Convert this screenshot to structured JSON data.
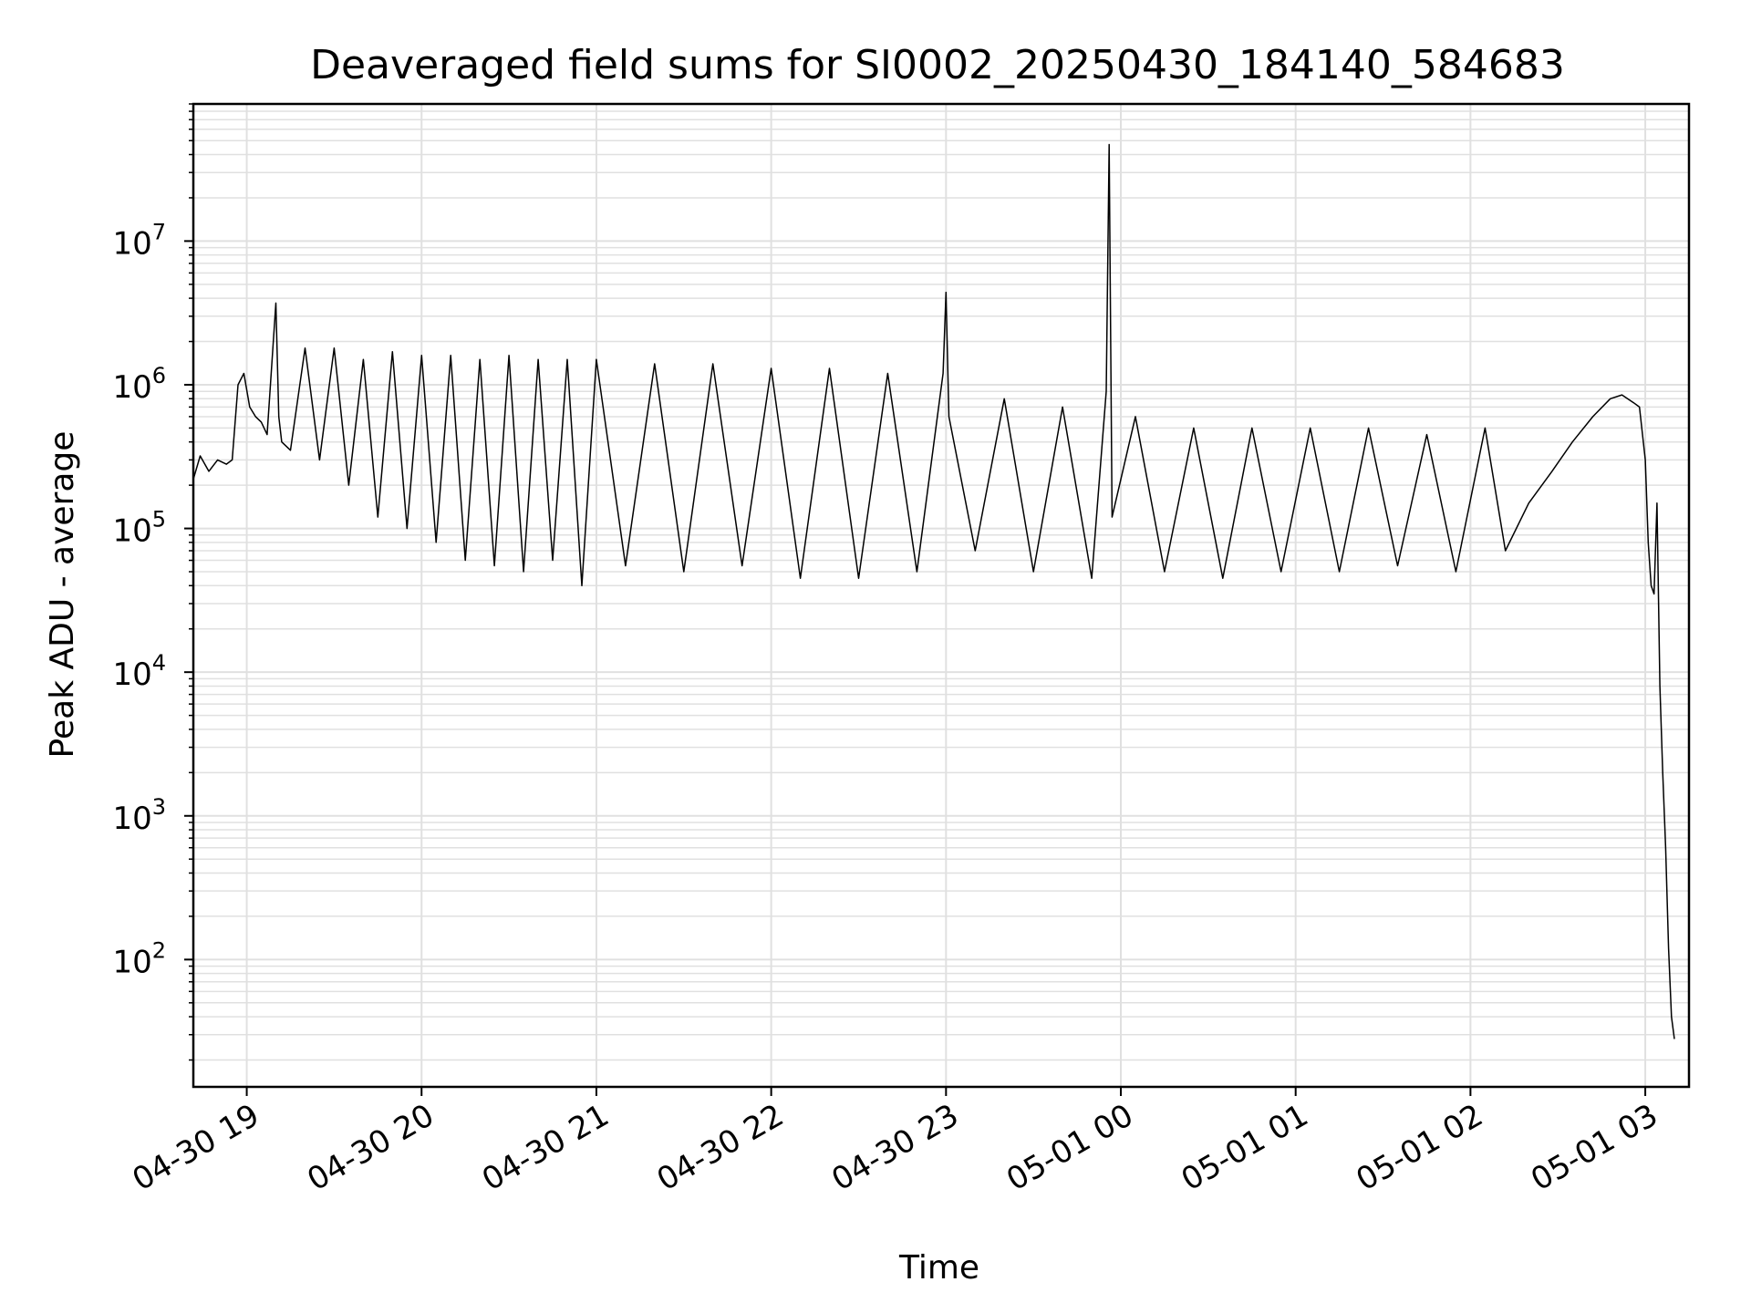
{
  "chart_data": {
    "type": "line",
    "title": "Deaveraged field sums for SI0002_20250430_184140_584683",
    "xlabel": "Time",
    "ylabel": "Peak ADU - average",
    "y_scale": "log",
    "ylim": [
      13,
      90000000
    ],
    "xlim": [
      "2025-04-30 18:41:40",
      "2025-05-01 03:15:00"
    ],
    "grid": true,
    "line_color": "#000000",
    "grid_color": "#e0e0e0",
    "x_ticks": [
      {
        "value": "2025-04-30 19:00",
        "label": "04-30 19"
      },
      {
        "value": "2025-04-30 20:00",
        "label": "04-30 20"
      },
      {
        "value": "2025-04-30 21:00",
        "label": "04-30 21"
      },
      {
        "value": "2025-04-30 22:00",
        "label": "04-30 22"
      },
      {
        "value": "2025-04-30 23:00",
        "label": "04-30 23"
      },
      {
        "value": "2025-05-01 00:00",
        "label": "05-01 00"
      },
      {
        "value": "2025-05-01 01:00",
        "label": "05-01 01"
      },
      {
        "value": "2025-05-01 02:00",
        "label": "05-01 02"
      },
      {
        "value": "2025-05-01 03:00",
        "label": "05-01 03"
      }
    ],
    "y_ticks": [
      {
        "value": 100,
        "base": "10",
        "exp": "2"
      },
      {
        "value": 1000,
        "base": "10",
        "exp": "3"
      },
      {
        "value": 10000,
        "base": "10",
        "exp": "4"
      },
      {
        "value": 100000,
        "base": "10",
        "exp": "5"
      },
      {
        "value": 1000000,
        "base": "10",
        "exp": "6"
      },
      {
        "value": 10000000,
        "base": "10",
        "exp": "7"
      }
    ],
    "series": [
      {
        "x": [
          "2025-04-30 18:41:40",
          "2025-04-30 18:44:00",
          "2025-04-30 18:47:00",
          "2025-04-30 18:50:00",
          "2025-04-30 18:53:00",
          "2025-04-30 18:55:00",
          "2025-04-30 18:57:00",
          "2025-04-30 18:59:00",
          "2025-04-30 19:01:00",
          "2025-04-30 19:03:00",
          "2025-04-30 19:05:00",
          "2025-04-30 19:07:00",
          "2025-04-30 19:10:00",
          "2025-04-30 19:11:00",
          "2025-04-30 19:12:00",
          "2025-04-30 19:15:00",
          "2025-04-30 19:20:00",
          "2025-04-30 19:25:00",
          "2025-04-30 19:30:00",
          "2025-04-30 19:35:00",
          "2025-04-30 19:40:00",
          "2025-04-30 19:45:00",
          "2025-04-30 19:50:00",
          "2025-04-30 19:55:00",
          "2025-04-30 20:00:00",
          "2025-04-30 20:05:00",
          "2025-04-30 20:10:00",
          "2025-04-30 20:15:00",
          "2025-04-30 20:20:00",
          "2025-04-30 20:25:00",
          "2025-04-30 20:30:00",
          "2025-04-30 20:35:00",
          "2025-04-30 20:40:00",
          "2025-04-30 20:45:00",
          "2025-04-30 20:50:00",
          "2025-04-30 20:55:00",
          "2025-04-30 21:00:00",
          "2025-04-30 21:10:00",
          "2025-04-30 21:20:00",
          "2025-04-30 21:30:00",
          "2025-04-30 21:40:00",
          "2025-04-30 21:50:00",
          "2025-04-30 22:00:00",
          "2025-04-30 22:10:00",
          "2025-04-30 22:20:00",
          "2025-04-30 22:30:00",
          "2025-04-30 22:40:00",
          "2025-04-30 22:50:00",
          "2025-04-30 22:59:00",
          "2025-04-30 23:00:00",
          "2025-04-30 23:01:00",
          "2025-04-30 23:10:00",
          "2025-04-30 23:20:00",
          "2025-04-30 23:30:00",
          "2025-04-30 23:40:00",
          "2025-04-30 23:50:00",
          "2025-04-30 23:55:00",
          "2025-04-30 23:56:00",
          "2025-04-30 23:57:00",
          "2025-05-01 00:05:00",
          "2025-05-01 00:15:00",
          "2025-05-01 00:25:00",
          "2025-05-01 00:35:00",
          "2025-05-01 00:45:00",
          "2025-05-01 00:55:00",
          "2025-05-01 01:05:00",
          "2025-05-01 01:15:00",
          "2025-05-01 01:25:00",
          "2025-05-01 01:35:00",
          "2025-05-01 01:45:00",
          "2025-05-01 01:55:00",
          "2025-05-01 02:05:00",
          "2025-05-01 02:12:00",
          "2025-05-01 02:20:00",
          "2025-05-01 02:28:00",
          "2025-05-01 02:35:00",
          "2025-05-01 02:42:00",
          "2025-05-01 02:48:00",
          "2025-05-01 02:52:00",
          "2025-05-01 02:56:00",
          "2025-05-01 02:58:00",
          "2025-05-01 03:00:00",
          "2025-05-01 03:01:00",
          "2025-05-01 03:02:00",
          "2025-05-01 03:03:00",
          "2025-05-01 03:04:00",
          "2025-05-01 03:05:00",
          "2025-05-01 03:06:00",
          "2025-05-01 03:07:00",
          "2025-05-01 03:08:00",
          "2025-05-01 03:09:00",
          "2025-05-01 03:10:00"
        ],
        "y": [
          220000,
          320000,
          250000,
          300000,
          280000,
          300000,
          1000000,
          1200000,
          700000,
          600000,
          550000,
          450000,
          3700000,
          600000,
          400000,
          350000,
          1800000,
          300000,
          1800000,
          200000,
          1500000,
          120000,
          1700000,
          100000,
          1600000,
          80000,
          1600000,
          60000,
          1500000,
          55000,
          1600000,
          50000,
          1500000,
          60000,
          1500000,
          40000,
          1500000,
          55000,
          1400000,
          50000,
          1400000,
          55000,
          1300000,
          45000,
          1300000,
          45000,
          1200000,
          50000,
          1200000,
          4400000,
          600000,
          70000,
          800000,
          50000,
          700000,
          45000,
          900000,
          47000000,
          120000,
          600000,
          50000,
          500000,
          45000,
          500000,
          50000,
          500000,
          50000,
          500000,
          55000,
          450000,
          50000,
          500000,
          70000,
          150000,
          250000,
          400000,
          600000,
          800000,
          850000,
          750000,
          700000,
          300000,
          80000,
          40000,
          35000,
          150000,
          8000,
          2000,
          600,
          120,
          40,
          28
        ]
      }
    ]
  }
}
